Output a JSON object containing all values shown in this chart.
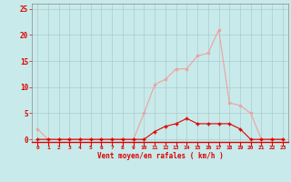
{
  "x": [
    0,
    1,
    2,
    3,
    4,
    5,
    6,
    7,
    8,
    9,
    10,
    11,
    12,
    13,
    14,
    15,
    16,
    17,
    18,
    19,
    20,
    21,
    22,
    23
  ],
  "rafales": [
    2,
    0,
    0,
    0,
    0,
    0,
    0,
    0,
    0,
    0,
    5,
    10.5,
    11.5,
    13.5,
    13.5,
    16,
    16.5,
    21,
    7,
    6.5,
    5,
    0,
    0,
    0
  ],
  "moyen": [
    0,
    0,
    0,
    0,
    0,
    0,
    0,
    0,
    0,
    0,
    0,
    1.5,
    2.5,
    3,
    4,
    3,
    3,
    3,
    3,
    2,
    0,
    0,
    0,
    0
  ],
  "bg_color": "#c8eaea",
  "grid_color": "#aacccc",
  "line_color_light": "#f0a0a0",
  "line_color_dark": "#dd0000",
  "xlabel": "Vent moyen/en rafales ( km/h )",
  "ylabel_ticks": [
    0,
    5,
    10,
    15,
    20,
    25
  ],
  "xlim": [
    -0.5,
    23.5
  ],
  "ylim": [
    -0.5,
    26
  ]
}
